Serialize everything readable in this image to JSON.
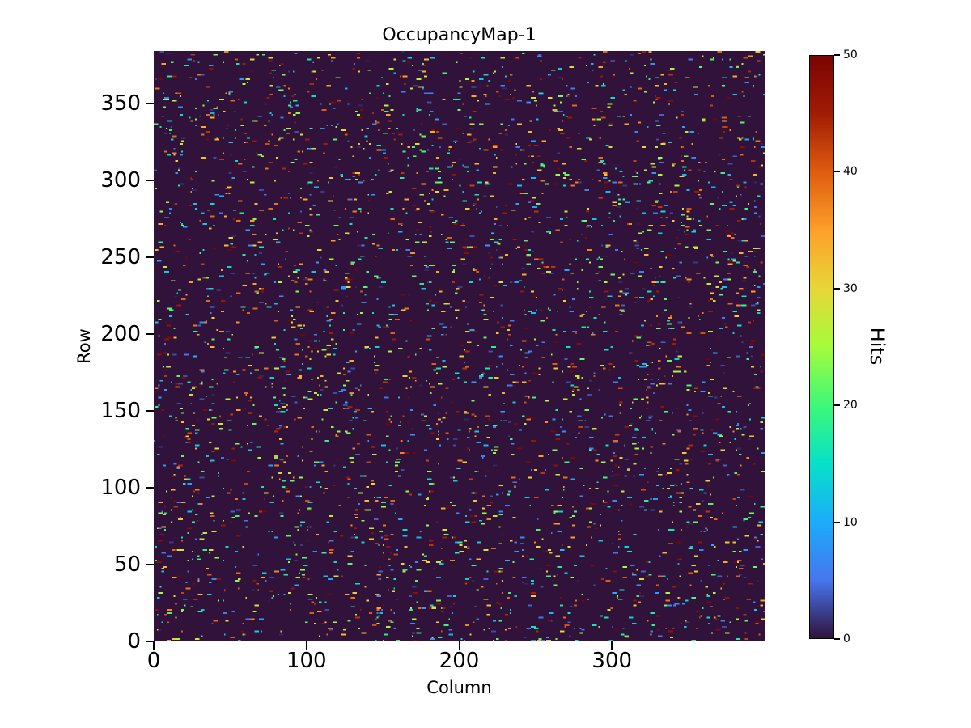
{
  "title": "OccupancyMap-1",
  "axes": {
    "xlabel": "Column",
    "ylabel": "Row",
    "x_ticks": [
      0,
      100,
      200,
      300
    ],
    "y_ticks": [
      0,
      50,
      100,
      150,
      200,
      250,
      300,
      350
    ],
    "x_range": [
      0,
      400
    ],
    "y_range": [
      0,
      384
    ]
  },
  "colorbar": {
    "label": "Hits",
    "ticks": [
      0,
      10,
      20,
      30,
      40,
      50
    ],
    "range": [
      0,
      50
    ]
  },
  "chart_data": {
    "type": "heatmap",
    "title": "OccupancyMap-1",
    "xlabel": "Column",
    "ylabel": "Row",
    "value_label": "Hits",
    "grid": {
      "cols": 400,
      "rows": 384
    },
    "value_range": [
      0,
      50
    ],
    "background_value": 0,
    "pattern": "sparse-random-hits",
    "hit_density": 0.024,
    "hit_value_distribution": "uniform 1-50",
    "dash_length_cells": [
      1,
      3
    ],
    "seed": 1234567,
    "colormap": "turbo",
    "plot_background_color": "#30123b",
    "colormap_stops": [
      [
        0.0,
        48,
        18,
        59
      ],
      [
        0.1,
        70,
        118,
        238
      ],
      [
        0.2,
        27,
        173,
        250
      ],
      [
        0.3,
        7,
        225,
        199
      ],
      [
        0.4,
        62,
        248,
        120
      ],
      [
        0.5,
        164,
        252,
        60
      ],
      [
        0.6,
        231,
        215,
        55
      ],
      [
        0.7,
        253,
        160,
        41
      ],
      [
        0.8,
        223,
        92,
        16
      ],
      [
        0.9,
        161,
        28,
        5
      ],
      [
        1.0,
        122,
        4,
        3
      ]
    ]
  }
}
